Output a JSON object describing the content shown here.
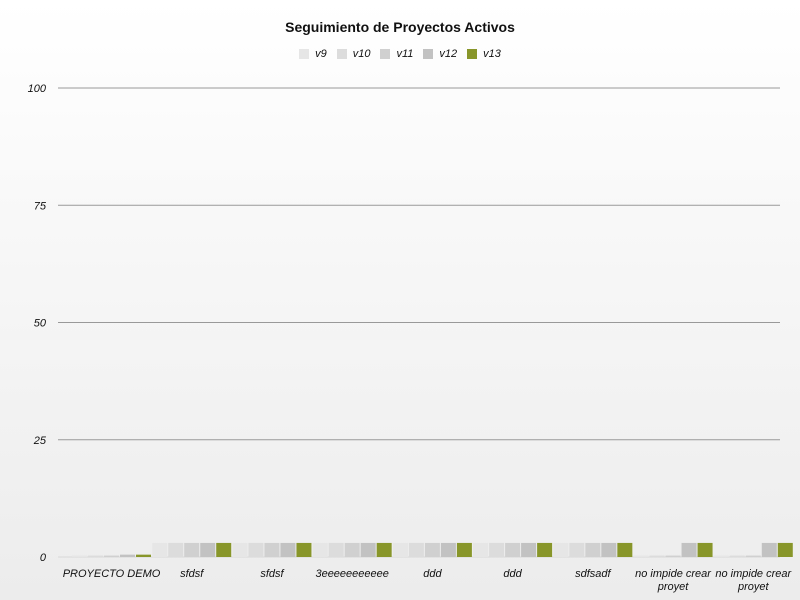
{
  "chart_data": {
    "type": "bar",
    "title": "Seguimiento de Proyectos Activos",
    "xlabel": "",
    "ylabel": "",
    "ylim": [
      0,
      100
    ],
    "yticks": [
      0,
      25,
      50,
      75,
      100
    ],
    "grid": true,
    "legend_position": "top-center",
    "categories": [
      [
        "PROYECTO DEMO"
      ],
      [
        "sfdsf"
      ],
      [
        "sfdsf"
      ],
      [
        "3eeeeeeeeeee"
      ],
      [
        "ddd"
      ],
      [
        "ddd"
      ],
      [
        "sdfsadf"
      ],
      [
        "no impide crear",
        "proyet"
      ],
      [
        "no impide crear",
        "proyet"
      ]
    ],
    "series": [
      {
        "name": "v9",
        "color": "#e6e6e6",
        "values": [
          0.3,
          3,
          3,
          3,
          3,
          3,
          3,
          0.3,
          0.3
        ]
      },
      {
        "name": "v10",
        "color": "#dcdcdc",
        "values": [
          0.3,
          3,
          3,
          3,
          3,
          3,
          3,
          0.3,
          0.3
        ]
      },
      {
        "name": "v11",
        "color": "#d0d0d0",
        "values": [
          0.3,
          3,
          3,
          3,
          3,
          3,
          3,
          0.3,
          0.3
        ]
      },
      {
        "name": "v12",
        "color": "#c2c2c2",
        "values": [
          0.5,
          3,
          3,
          3,
          3,
          3,
          3,
          3,
          3
        ]
      },
      {
        "name": "v13",
        "color": "#88962a",
        "values": [
          0.5,
          3,
          3,
          3,
          3,
          3,
          3,
          3,
          3
        ]
      }
    ]
  }
}
